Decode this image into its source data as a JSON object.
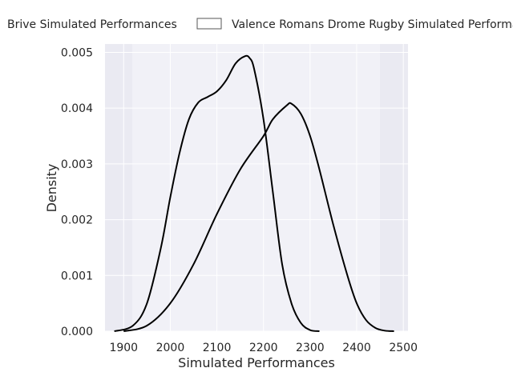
{
  "chart_data": {
    "type": "area",
    "title": "",
    "xlabel": "Simulated Performances",
    "ylabel": "Density",
    "xlim": [
      1860,
      2510
    ],
    "ylim": [
      0,
      0.00515
    ],
    "xticks": [
      1900,
      2000,
      2100,
      2200,
      2300,
      2400,
      2500
    ],
    "yticks": [
      0.0,
      0.001,
      0.002,
      0.003,
      0.004,
      0.005
    ],
    "ytick_labels": [
      "0.000",
      "0.001",
      "0.002",
      "0.003",
      "0.004",
      "0.005"
    ],
    "grid": true,
    "legend_position": "top (above plot, cropped)",
    "series": [
      {
        "name": "Brive Simulated Performances",
        "color": "#000000",
        "fill": "none",
        "x": [
          1880,
          1920,
          1950,
          1980,
          2000,
          2020,
          2040,
          2060,
          2080,
          2100,
          2120,
          2140,
          2160,
          2170,
          2180,
          2200,
          2220,
          2240,
          2260,
          2280,
          2300,
          2320
        ],
        "y": [
          0.0,
          0.0001,
          0.0005,
          0.0015,
          0.0024,
          0.0032,
          0.0038,
          0.0041,
          0.0042,
          0.0043,
          0.0045,
          0.0048,
          0.00493,
          0.0049,
          0.0047,
          0.0038,
          0.0025,
          0.0012,
          0.0005,
          0.00015,
          2e-05,
          0.0
        ]
      },
      {
        "name": "Valence Romans Drome Rugby Simulated Performances",
        "color": "#000000",
        "fill": "none",
        "x": [
          1900,
          1950,
          2000,
          2050,
          2100,
          2150,
          2200,
          2220,
          2250,
          2260,
          2280,
          2300,
          2320,
          2350,
          2380,
          2400,
          2420,
          2440,
          2460,
          2480
        ],
        "y": [
          0.0,
          0.0001,
          0.0005,
          0.0012,
          0.0021,
          0.0029,
          0.0035,
          0.0038,
          0.00405,
          0.00408,
          0.0039,
          0.0035,
          0.0029,
          0.0019,
          0.001,
          0.0005,
          0.0002,
          6e-05,
          1e-05,
          0.0
        ]
      }
    ]
  },
  "legend": {
    "items": [
      {
        "label": "Brive Simulated Performances",
        "swatch": "none"
      },
      {
        "label": "Valence Romans Drome Rugby Simulated Performances",
        "swatch": "box"
      }
    ]
  },
  "colors": {
    "plot_background": "#eaeaf2",
    "grid": "#ffffff",
    "line": "#000000"
  }
}
